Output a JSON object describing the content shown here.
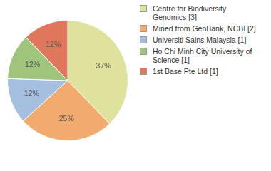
{
  "chart_data": {
    "type": "pie",
    "categories": [
      "Centre for Biodiversity Genomics [3]",
      "Mined from GenBank, NCBI [2]",
      "Universiti Sains Malaysia [1]",
      "Ho Chi Minh City University of Science [1]",
      "1st Base Pte Ltd [1]"
    ],
    "values": [
      37,
      25,
      12,
      12,
      12
    ],
    "value_labels": [
      "37%",
      "25%",
      "12%",
      "12%",
      "12%"
    ],
    "colors": [
      "#dee29d",
      "#f1ab6f",
      "#a5bfe0",
      "#9fc47b",
      "#e0765c"
    ],
    "data_labels": true,
    "legend": "right"
  }
}
